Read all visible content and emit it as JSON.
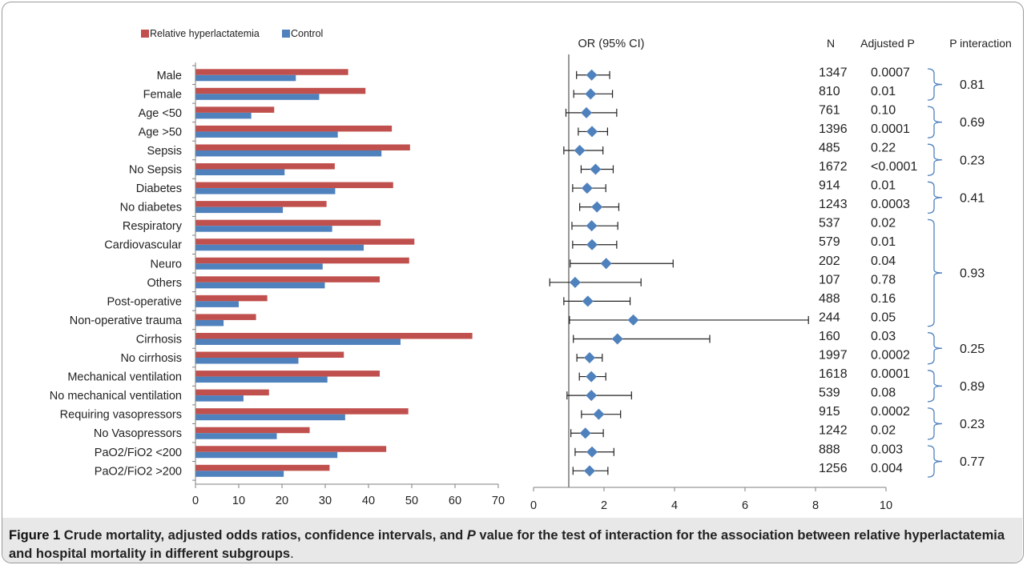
{
  "chart_data": [
    {
      "type": "bar",
      "orientation": "horizontal",
      "categories": [
        "Male",
        "Female",
        "Age <50",
        "Age >50",
        "Sepsis",
        "No Sepsis",
        "Diabetes",
        "No diabetes",
        "Respiratory",
        "Cardiovascular",
        "Neuro",
        "Others",
        "Post-operative",
        "Non-operative trauma",
        "Cirrhosis",
        "No cirrhosis",
        "Mechanical ventilation",
        "No mechanical ventilation",
        "Requiring vasopressors",
        "No Vasopressors",
        "PaO2/FiO2 <200",
        "PaO2/FiO2 >200"
      ],
      "series": [
        {
          "name": "Relative hyperlactatemia",
          "color": "#c0504d",
          "values": [
            35.3,
            39.3,
            18.2,
            45.4,
            49.6,
            32.2,
            45.7,
            30.3,
            42.8,
            50.6,
            49.4,
            42.6,
            16.6,
            14.0,
            64.0,
            34.3,
            42.6,
            17.0,
            49.2,
            26.4,
            44.1,
            31.0
          ]
        },
        {
          "name": "Control",
          "color": "#4f81bd",
          "values": [
            23.2,
            28.6,
            12.9,
            32.9,
            43.0,
            20.6,
            32.3,
            20.2,
            31.6,
            38.9,
            29.4,
            29.9,
            10.0,
            6.5,
            47.4,
            23.8,
            30.5,
            11.1,
            34.6,
            18.8,
            32.8,
            20.4
          ]
        }
      ],
      "xlim": [
        0,
        70
      ],
      "xticks": [
        "0",
        "10",
        "20",
        "30",
        "40",
        "50",
        "60",
        "70"
      ],
      "legend": "top",
      "grid": false
    },
    {
      "type": "forest",
      "title": "OR (95% CI)",
      "reference_line": 1,
      "xlim": [
        0,
        10
      ],
      "xticks": [
        "0",
        "2",
        "4",
        "6",
        "8",
        "10"
      ],
      "marker_color": "#4f81bd",
      "rows": [
        {
          "or": 1.65,
          "lo": 1.22,
          "hi": 2.16
        },
        {
          "or": 1.62,
          "lo": 1.14,
          "hi": 2.24
        },
        {
          "or": 1.5,
          "lo": 0.92,
          "hi": 2.36
        },
        {
          "or": 1.66,
          "lo": 1.27,
          "hi": 2.1
        },
        {
          "or": 1.31,
          "lo": 0.86,
          "hi": 1.97
        },
        {
          "or": 1.76,
          "lo": 1.35,
          "hi": 2.26
        },
        {
          "or": 1.52,
          "lo": 1.11,
          "hi": 2.05
        },
        {
          "or": 1.8,
          "lo": 1.31,
          "hi": 2.42
        },
        {
          "or": 1.65,
          "lo": 1.09,
          "hi": 2.39
        },
        {
          "or": 1.66,
          "lo": 1.11,
          "hi": 2.36
        },
        {
          "or": 2.06,
          "lo": 1.04,
          "hi": 3.96
        },
        {
          "or": 1.18,
          "lo": 0.46,
          "hi": 3.05
        },
        {
          "or": 1.54,
          "lo": 0.86,
          "hi": 2.74
        },
        {
          "or": 2.83,
          "lo": 1.02,
          "hi": 7.8
        },
        {
          "or": 2.38,
          "lo": 1.13,
          "hi": 5.0
        },
        {
          "or": 1.59,
          "lo": 1.23,
          "hi": 1.95
        },
        {
          "or": 1.64,
          "lo": 1.3,
          "hi": 2.05
        },
        {
          "or": 1.64,
          "lo": 0.95,
          "hi": 2.78
        },
        {
          "or": 1.85,
          "lo": 1.36,
          "hi": 2.47
        },
        {
          "or": 1.47,
          "lo": 1.06,
          "hi": 1.98
        },
        {
          "or": 1.66,
          "lo": 1.18,
          "hi": 2.28
        },
        {
          "or": 1.59,
          "lo": 1.12,
          "hi": 2.11
        }
      ]
    },
    {
      "type": "table",
      "columns": [
        "N",
        "Adjusted P",
        "P interaction"
      ],
      "N": [
        "1347",
        "810",
        "761",
        "1396",
        "485",
        "1672",
        "914",
        "1243",
        "537",
        "579",
        "202",
        "107",
        "488",
        "244",
        "160",
        "1997",
        "1618",
        "539",
        "915",
        "1242",
        "888",
        "1256"
      ],
      "adjusted_p": [
        "0.0007",
        "0.01",
        "0.10",
        "0.0001",
        "0.22",
        "<0.0001",
        "0.01",
        "0.0003",
        "0.02",
        "0.01",
        "0.04",
        "0.78",
        "0.16",
        "0.05",
        "0.03",
        "0.0002",
        "0.0001",
        "0.08",
        "0.0002",
        "0.02",
        "0.003",
        "0.004"
      ],
      "p_interaction_groups": [
        {
          "first": 0,
          "last": 1,
          "value": "0.81"
        },
        {
          "first": 2,
          "last": 3,
          "value": "0.69"
        },
        {
          "first": 4,
          "last": 5,
          "value": "0.23"
        },
        {
          "first": 6,
          "last": 7,
          "value": "0.41"
        },
        {
          "first": 8,
          "last": 13,
          "value": "0.93"
        },
        {
          "first": 14,
          "last": 15,
          "value": "0.25"
        },
        {
          "first": 16,
          "last": 17,
          "value": "0.89"
        },
        {
          "first": 18,
          "last": 19,
          "value": "0.23"
        },
        {
          "first": 20,
          "last": 21,
          "value": "0.77"
        }
      ]
    }
  ],
  "caption": {
    "lead": "Figure 1",
    "text1": " Crude mortality, adjusted odds ratios, confidence intervals, and ",
    "p_italic": "P",
    "text2": " value for the test of interaction for the association between relative hyperlactatemia and hospital mortality in different subgroups",
    "end": "."
  }
}
